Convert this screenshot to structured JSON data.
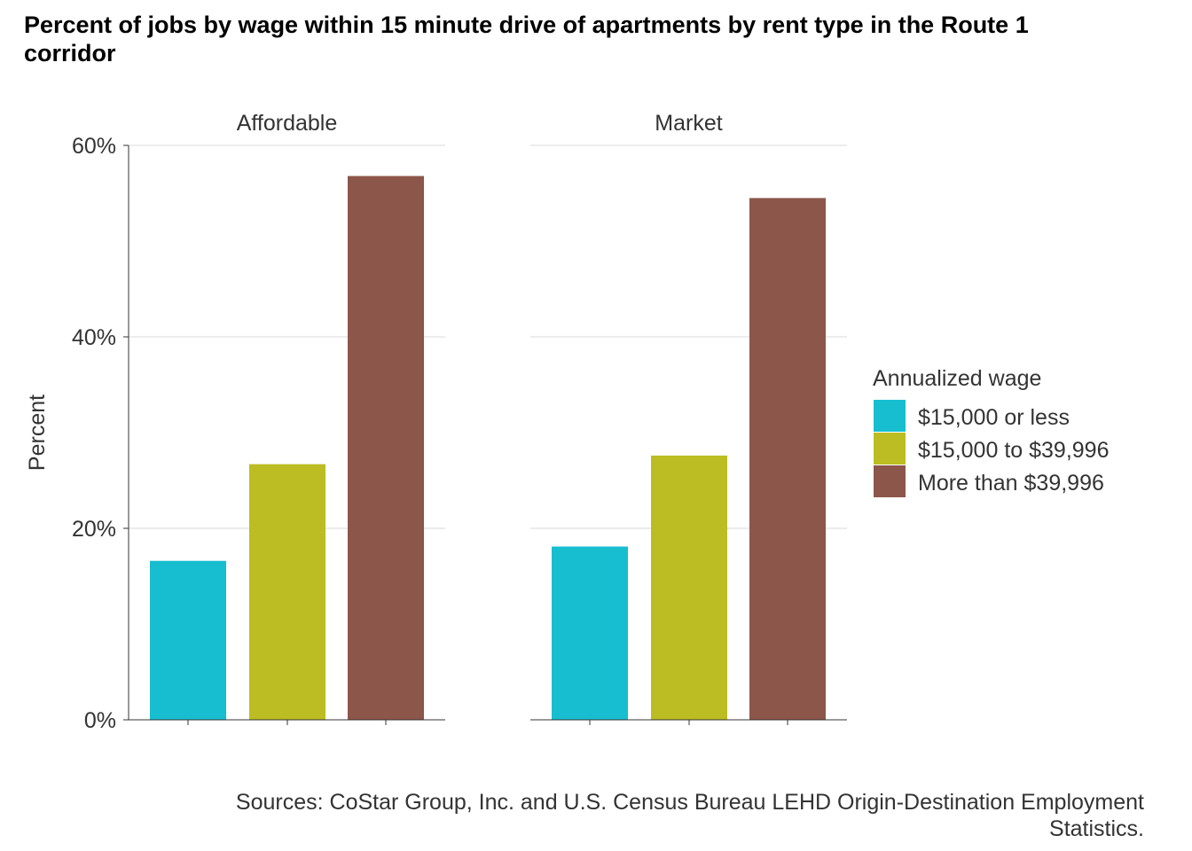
{
  "chart_data": {
    "type": "bar",
    "title": "Percent of jobs by wage within 15 minute drive of apartments by rent type in the Route 1 corridor",
    "ylabel": "Percent",
    "xlabel": "",
    "ylim": [
      0,
      60
    ],
    "y_ticks": [
      "0%",
      "20%",
      "40%",
      "60%"
    ],
    "y_tick_values": [
      0,
      20,
      40,
      60
    ],
    "grid": "horizontal major gridlines on",
    "facets": [
      "Affordable",
      "Market"
    ],
    "legend": {
      "title": "Annualized wage",
      "placement": "right"
    },
    "series": [
      {
        "name": "$15,000 or less",
        "color": "#17BECF",
        "values": [
          16.6,
          18.1
        ]
      },
      {
        "name": "$15,000 to $39,996",
        "color": "#BCBD22",
        "values": [
          26.7,
          27.6
        ]
      },
      {
        "name": "More than $39,996",
        "color": "#8C564B",
        "values": [
          56.8,
          54.5
        ]
      }
    ],
    "caption": "Sources: CoStar Group, Inc. and U.S. Census Bureau LEHD Origin-Destination Employment Statistics."
  }
}
